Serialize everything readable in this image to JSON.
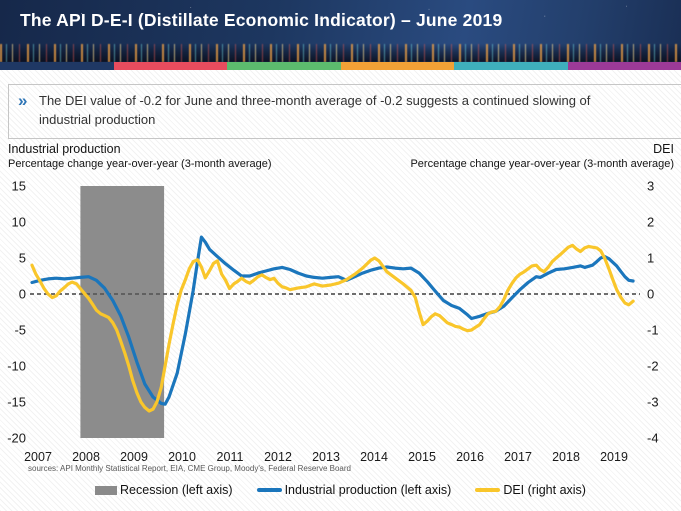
{
  "header": {
    "title": "The API D-E-I (Distillate Economic Indicator) – June 2019",
    "stripe_colors": [
      "#1f3864",
      "#e84c5e",
      "#5cbb6e",
      "#f2a136",
      "#3fafbc",
      "#9c3a98"
    ]
  },
  "callout": {
    "icon": "chevron-double-right",
    "text": "The DEI value of -0.2 for June and three-month average of -0.2 suggests a continued slowing of industrial production"
  },
  "chart_data": {
    "type": "line",
    "left_axis_title": "Industrial production",
    "left_axis_subtitle": "Percentage change year-over-year (3-month average)",
    "right_axis_title": "DEI",
    "right_axis_subtitle": "Percentage change year-over-year (3-month average)",
    "left_axis": {
      "ticks": [
        15,
        10,
        5,
        0,
        -5,
        -10,
        -15,
        -20
      ],
      "range": [
        -20,
        15
      ]
    },
    "right_axis": {
      "ticks": [
        3,
        2,
        1,
        0,
        -1,
        -2,
        -3,
        -4
      ],
      "range": [
        -4,
        3
      ]
    },
    "x_labels": [
      "2007",
      "2008",
      "2009",
      "2010",
      "2011",
      "2012",
      "2013",
      "2014",
      "2015",
      "2016",
      "2017",
      "2018",
      "2019"
    ],
    "x_range": [
      2007.0,
      2019.45
    ],
    "zero_line": true,
    "grid": false,
    "legend_position": "bottom",
    "recession_band": {
      "start": 2008.0,
      "end": 2009.73,
      "color": "#8c8c8c"
    },
    "series": [
      {
        "name": "Industrial production (left axis)",
        "axis": "left",
        "color": "#1b76bc",
        "points": [
          [
            2007.0,
            1.6
          ],
          [
            2007.17,
            1.9
          ],
          [
            2007.33,
            2.1
          ],
          [
            2007.5,
            2.2
          ],
          [
            2007.67,
            2.1
          ],
          [
            2007.83,
            2.2
          ],
          [
            2008.0,
            2.3
          ],
          [
            2008.17,
            2.4
          ],
          [
            2008.33,
            1.9
          ],
          [
            2008.5,
            0.8
          ],
          [
            2008.67,
            -0.9
          ],
          [
            2008.83,
            -3.0
          ],
          [
            2009.0,
            -6.0
          ],
          [
            2009.17,
            -9.5
          ],
          [
            2009.33,
            -12.5
          ],
          [
            2009.5,
            -14.3
          ],
          [
            2009.67,
            -15.2
          ],
          [
            2009.75,
            -15.3
          ],
          [
            2009.83,
            -14.3
          ],
          [
            2010.0,
            -11.0
          ],
          [
            2010.17,
            -5.5
          ],
          [
            2010.33,
            0.5
          ],
          [
            2010.42,
            4.5
          ],
          [
            2010.5,
            7.9
          ],
          [
            2010.58,
            7.2
          ],
          [
            2010.67,
            6.2
          ],
          [
            2010.83,
            5.2
          ],
          [
            2011.0,
            4.2
          ],
          [
            2011.17,
            3.3
          ],
          [
            2011.33,
            2.5
          ],
          [
            2011.5,
            2.5
          ],
          [
            2011.67,
            2.9
          ],
          [
            2011.83,
            3.2
          ],
          [
            2012.0,
            3.5
          ],
          [
            2012.17,
            3.7
          ],
          [
            2012.33,
            3.4
          ],
          [
            2012.5,
            2.9
          ],
          [
            2012.67,
            2.5
          ],
          [
            2012.83,
            2.3
          ],
          [
            2013.0,
            2.2
          ],
          [
            2013.17,
            2.3
          ],
          [
            2013.33,
            2.4
          ],
          [
            2013.5,
            1.9
          ],
          [
            2013.67,
            2.4
          ],
          [
            2013.83,
            2.9
          ],
          [
            2014.0,
            3.3
          ],
          [
            2014.17,
            3.6
          ],
          [
            2014.33,
            3.75
          ],
          [
            2014.5,
            3.6
          ],
          [
            2014.67,
            3.5
          ],
          [
            2014.83,
            3.6
          ],
          [
            2015.0,
            2.9
          ],
          [
            2015.17,
            1.7
          ],
          [
            2015.33,
            0.4
          ],
          [
            2015.5,
            -0.9
          ],
          [
            2015.67,
            -1.6
          ],
          [
            2015.83,
            -2.0
          ],
          [
            2016.0,
            -2.9
          ],
          [
            2016.08,
            -3.4
          ],
          [
            2016.25,
            -3.1
          ],
          [
            2016.42,
            -2.7
          ],
          [
            2016.58,
            -2.4
          ],
          [
            2016.75,
            -1.7
          ],
          [
            2016.92,
            -0.5
          ],
          [
            2017.08,
            0.6
          ],
          [
            2017.25,
            1.6
          ],
          [
            2017.42,
            2.4
          ],
          [
            2017.5,
            2.3
          ],
          [
            2017.67,
            2.9
          ],
          [
            2017.83,
            3.4
          ],
          [
            2018.0,
            3.5
          ],
          [
            2018.17,
            3.7
          ],
          [
            2018.33,
            3.9
          ],
          [
            2018.42,
            3.7
          ],
          [
            2018.58,
            4.0
          ],
          [
            2018.67,
            4.5
          ],
          [
            2018.75,
            5.0
          ],
          [
            2018.83,
            5.2
          ],
          [
            2018.92,
            4.9
          ],
          [
            2019.0,
            4.4
          ],
          [
            2019.08,
            3.9
          ],
          [
            2019.17,
            3.1
          ],
          [
            2019.25,
            2.4
          ],
          [
            2019.33,
            1.9
          ],
          [
            2019.42,
            1.8
          ]
        ]
      },
      {
        "name": "DEI (right axis)",
        "axis": "right",
        "color": "#f9c62b",
        "points": [
          [
            2007.0,
            0.8
          ],
          [
            2007.08,
            0.55
          ],
          [
            2007.17,
            0.35
          ],
          [
            2007.25,
            0.15
          ],
          [
            2007.33,
            0.0
          ],
          [
            2007.42,
            -0.1
          ],
          [
            2007.5,
            -0.05
          ],
          [
            2007.58,
            0.08
          ],
          [
            2007.67,
            0.18
          ],
          [
            2007.75,
            0.28
          ],
          [
            2007.83,
            0.33
          ],
          [
            2007.92,
            0.28
          ],
          [
            2008.0,
            0.15
          ],
          [
            2008.08,
            0.02
          ],
          [
            2008.17,
            -0.12
          ],
          [
            2008.25,
            -0.28
          ],
          [
            2008.33,
            -0.45
          ],
          [
            2008.42,
            -0.55
          ],
          [
            2008.5,
            -0.6
          ],
          [
            2008.58,
            -0.65
          ],
          [
            2008.67,
            -0.8
          ],
          [
            2008.75,
            -1.0
          ],
          [
            2008.83,
            -1.3
          ],
          [
            2008.92,
            -1.65
          ],
          [
            2009.0,
            -2.0
          ],
          [
            2009.08,
            -2.4
          ],
          [
            2009.17,
            -2.75
          ],
          [
            2009.25,
            -3.0
          ],
          [
            2009.33,
            -3.15
          ],
          [
            2009.42,
            -3.25
          ],
          [
            2009.5,
            -3.2
          ],
          [
            2009.58,
            -3.0
          ],
          [
            2009.67,
            -2.6
          ],
          [
            2009.75,
            -2.0
          ],
          [
            2009.83,
            -1.4
          ],
          [
            2009.92,
            -0.8
          ],
          [
            2010.0,
            -0.3
          ],
          [
            2010.08,
            0.1
          ],
          [
            2010.17,
            0.4
          ],
          [
            2010.25,
            0.7
          ],
          [
            2010.33,
            0.9
          ],
          [
            2010.42,
            0.95
          ],
          [
            2010.5,
            0.75
          ],
          [
            2010.58,
            0.45
          ],
          [
            2010.67,
            0.65
          ],
          [
            2010.75,
            0.85
          ],
          [
            2010.83,
            0.92
          ],
          [
            2010.92,
            0.55
          ],
          [
            2011.0,
            0.38
          ],
          [
            2011.08,
            0.15
          ],
          [
            2011.17,
            0.28
          ],
          [
            2011.25,
            0.35
          ],
          [
            2011.33,
            0.44
          ],
          [
            2011.42,
            0.35
          ],
          [
            2011.5,
            0.3
          ],
          [
            2011.58,
            0.38
          ],
          [
            2011.67,
            0.48
          ],
          [
            2011.75,
            0.53
          ],
          [
            2011.83,
            0.46
          ],
          [
            2011.92,
            0.4
          ],
          [
            2012.0,
            0.44
          ],
          [
            2012.08,
            0.3
          ],
          [
            2012.17,
            0.2
          ],
          [
            2012.25,
            0.17
          ],
          [
            2012.33,
            0.12
          ],
          [
            2012.5,
            0.17
          ],
          [
            2012.67,
            0.2
          ],
          [
            2012.83,
            0.28
          ],
          [
            2013.0,
            0.22
          ],
          [
            2013.17,
            0.25
          ],
          [
            2013.33,
            0.3
          ],
          [
            2013.5,
            0.4
          ],
          [
            2013.67,
            0.55
          ],
          [
            2013.83,
            0.72
          ],
          [
            2014.0,
            0.94
          ],
          [
            2014.08,
            1.0
          ],
          [
            2014.17,
            0.92
          ],
          [
            2014.33,
            0.62
          ],
          [
            2014.5,
            0.45
          ],
          [
            2014.67,
            0.28
          ],
          [
            2014.83,
            0.1
          ],
          [
            2014.92,
            -0.1
          ],
          [
            2015.0,
            -0.5
          ],
          [
            2015.08,
            -0.85
          ],
          [
            2015.17,
            -0.75
          ],
          [
            2015.25,
            -0.63
          ],
          [
            2015.33,
            -0.55
          ],
          [
            2015.42,
            -0.6
          ],
          [
            2015.5,
            -0.7
          ],
          [
            2015.58,
            -0.8
          ],
          [
            2015.67,
            -0.85
          ],
          [
            2015.75,
            -0.9
          ],
          [
            2015.83,
            -0.92
          ],
          [
            2015.92,
            -0.98
          ],
          [
            2016.0,
            -1.02
          ],
          [
            2016.08,
            -1.0
          ],
          [
            2016.17,
            -0.92
          ],
          [
            2016.25,
            -0.85
          ],
          [
            2016.33,
            -0.7
          ],
          [
            2016.42,
            -0.55
          ],
          [
            2016.5,
            -0.5
          ],
          [
            2016.58,
            -0.48
          ],
          [
            2016.67,
            -0.35
          ],
          [
            2016.75,
            -0.15
          ],
          [
            2016.83,
            0.1
          ],
          [
            2016.92,
            0.3
          ],
          [
            2017.0,
            0.45
          ],
          [
            2017.08,
            0.55
          ],
          [
            2017.17,
            0.62
          ],
          [
            2017.25,
            0.7
          ],
          [
            2017.33,
            0.78
          ],
          [
            2017.42,
            0.8
          ],
          [
            2017.5,
            0.68
          ],
          [
            2017.58,
            0.62
          ],
          [
            2017.67,
            0.75
          ],
          [
            2017.75,
            0.9
          ],
          [
            2017.83,
            1.0
          ],
          [
            2017.92,
            1.1
          ],
          [
            2018.0,
            1.2
          ],
          [
            2018.08,
            1.3
          ],
          [
            2018.17,
            1.35
          ],
          [
            2018.25,
            1.25
          ],
          [
            2018.33,
            1.18
          ],
          [
            2018.42,
            1.28
          ],
          [
            2018.5,
            1.32
          ],
          [
            2018.58,
            1.3
          ],
          [
            2018.67,
            1.28
          ],
          [
            2018.75,
            1.2
          ],
          [
            2018.83,
            1.0
          ],
          [
            2018.92,
            0.7
          ],
          [
            2019.0,
            0.4
          ],
          [
            2019.08,
            0.12
          ],
          [
            2019.17,
            -0.1
          ],
          [
            2019.25,
            -0.25
          ],
          [
            2019.33,
            -0.3
          ],
          [
            2019.42,
            -0.2
          ]
        ]
      }
    ]
  },
  "sources": "sources: API Monthly Statistical Report, EIA, CME Group, Moody's, Federal Reserve Board",
  "legend": {
    "items": [
      {
        "label": "Recession (left axis)",
        "swatch": "box",
        "color": "#8a8a8a"
      },
      {
        "label": "Industrial production (left axis)",
        "swatch": "line",
        "color": "#1b76bc"
      },
      {
        "label": "DEI (right axis)",
        "swatch": "line",
        "color": "#f9c62b"
      }
    ]
  },
  "colors": {
    "zero_line": "#5a5a5a",
    "tick_text": "#1a1a1a",
    "accent_blue": "#1b76bc",
    "accent_yellow": "#f9c62b"
  }
}
